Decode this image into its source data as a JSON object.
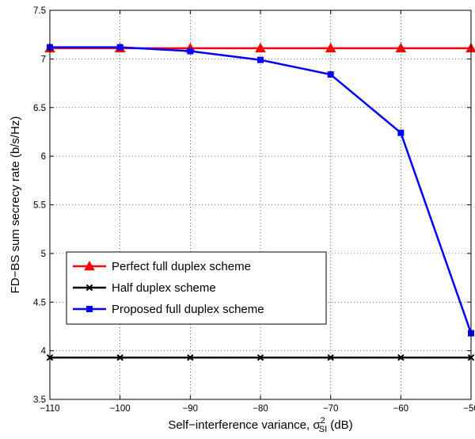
{
  "chart_data": {
    "type": "line",
    "title": "",
    "xlabel_prefix": "Self−interference variance, σ",
    "xlabel_sup": "2",
    "xlabel_sub": "SI",
    "xlabel_suffix": " (dB)",
    "ylabel": "FD−BS  sum secrecy rate (b/s/Hz)",
    "xlim": [
      -110,
      -50
    ],
    "ylim": [
      3.5,
      7.5
    ],
    "x_ticks": [
      -110,
      -100,
      -90,
      -80,
      -70,
      -60,
      -50
    ],
    "x_tick_labels": [
      "−110",
      "−100",
      "−90",
      "−80",
      "−70",
      "−60",
      "−50"
    ],
    "y_ticks": [
      3.5,
      4,
      4.5,
      5,
      5.5,
      6,
      6.5,
      7,
      7.5
    ],
    "y_tick_labels": [
      "3.5",
      "4",
      "4.5",
      "5",
      "5.5",
      "6",
      "6.5",
      "7",
      "7.5"
    ],
    "grid": true,
    "legend_position": "lower-left",
    "x": [
      -110,
      -100,
      -90,
      -80,
      -70,
      -60,
      -50
    ],
    "series": [
      {
        "name": "Perfect full duplex scheme",
        "color": "#ff0000",
        "marker": "triangle",
        "values": [
          7.11,
          7.11,
          7.11,
          7.11,
          7.11,
          7.11,
          7.11
        ]
      },
      {
        "name": "Half duplex scheme",
        "color": "#000000",
        "marker": "x",
        "values": [
          3.93,
          3.93,
          3.93,
          3.93,
          3.93,
          3.93,
          3.93
        ]
      },
      {
        "name": "Proposed full duplex scheme",
        "color": "#0000ff",
        "marker": "square",
        "values": [
          7.12,
          7.12,
          7.08,
          6.99,
          6.84,
          6.24,
          4.18
        ]
      }
    ]
  }
}
